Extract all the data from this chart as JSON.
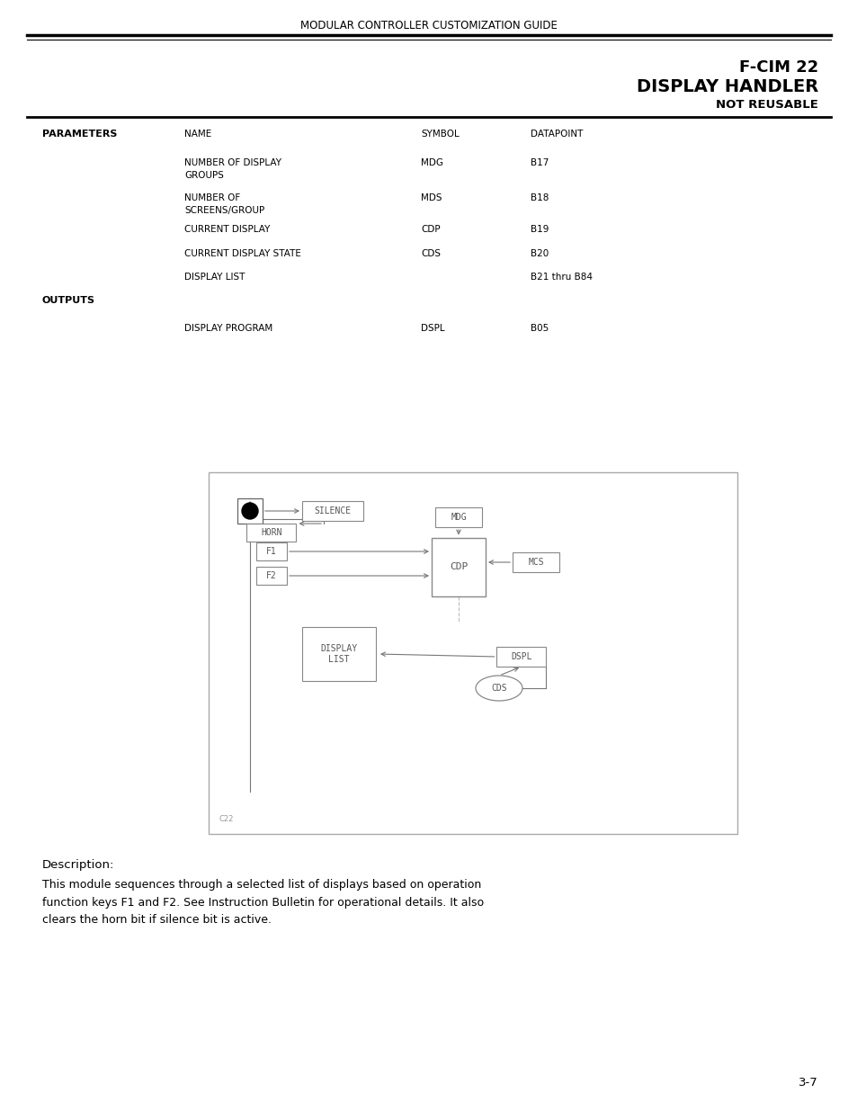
{
  "page_title": "MODULAR CONTROLLER CUSTOMIZATION GUIDE",
  "title_line1": "F-CIM 22",
  "title_line2": "DISPLAY HANDLER",
  "title_line3": "NOT REUSABLE",
  "params_label": "PARAMETERS",
  "outputs_label": "OUTPUTS",
  "params_header": [
    "NAME",
    "SYMBOL",
    "DATAPOINT"
  ],
  "params_rows": [
    [
      "NUMBER OF DISPLAY\nGROUPS",
      "MDG",
      "B17"
    ],
    [
      "NUMBER OF\nSCREENS/GROUP",
      "MDS",
      "B18"
    ],
    [
      "CURRENT DISPLAY",
      "CDP",
      "B19"
    ],
    [
      "CURRENT DISPLAY STATE",
      "CDS",
      "B20"
    ],
    [
      "DISPLAY LIST",
      "",
      "B21 thru B84"
    ]
  ],
  "outputs_rows": [
    [
      "DISPLAY PROGRAM",
      "DSPL",
      "B05"
    ]
  ],
  "description_title": "Description:",
  "description_body": "This module sequences through a selected list of displays based on operation\nfunction keys F1 and F2. See Instruction Bulletin for operational details. It also\nclears the horn bit if silence bit is active.",
  "page_number": "3-7",
  "diagram_label": "C22",
  "bg_color": "#ffffff",
  "text_color": "#000000"
}
